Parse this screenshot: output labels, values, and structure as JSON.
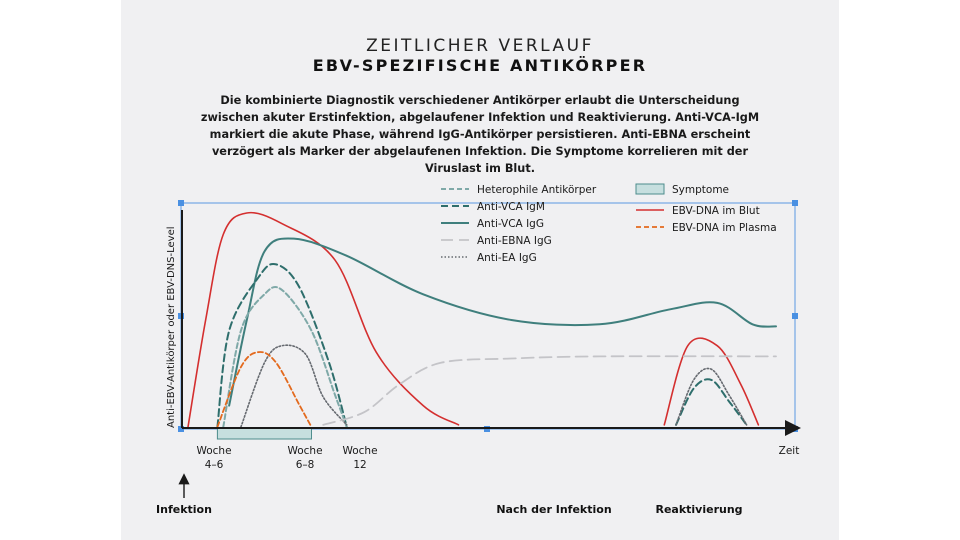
{
  "header": {
    "title_line1": "ZEITLICHER VERLAUF",
    "title_line2": "EBV-SPEZIFISCHE ANTIKÖRPER",
    "description": "Die kombinierte Diagnostik verschiedener Antikörper erlaubt die Unterscheidung zwischen akuter Erstinfektion, abgelaufener Infektion und Reaktivierung. Anti-VCA-IgM markiert die akute Phase, während IgG-Antikörper persistieren. Anti-EBNA erscheint verzögert als Marker der abgelaufenen Infektion. Die Symptome korrelieren mit der Viruslast im Blut."
  },
  "chart_data": {
    "type": "line",
    "ylabel": "Anti-EBV-Antikörper oder EBV-DNS-Level",
    "xlabel": "Zeit",
    "x_ticks": [
      {
        "label": "Woche\n4–6"
      },
      {
        "label": "Woche\n6–8"
      },
      {
        "label": "Woche\n12"
      }
    ],
    "bottom_labels": {
      "infection": "Infektion",
      "after": "Nach der Infektion",
      "reactivation": "Reaktivierung"
    },
    "colors": {
      "heterophile": "#7fa9a8",
      "vca_igm": "#2e6e6c",
      "vca_igg": "#3f7f7d",
      "ebna": "#c4c4c8",
      "ea": "#666a70",
      "symptome_fill": "#c6dfdf",
      "symptome_stroke": "#4d8c8c",
      "dna_blut": "#d42f2f",
      "dna_plasma": "#e36a1e",
      "selection": "#4a90e2"
    },
    "legend": [
      {
        "key": "heterophile",
        "label": "Heterophile Antikörper",
        "style": "dashed-short"
      },
      {
        "key": "vca_igm",
        "label": "Anti-VCA IgM",
        "style": "dashed"
      },
      {
        "key": "vca_igg",
        "label": "Anti-VCA IgG",
        "style": "solid"
      },
      {
        "key": "ebna",
        "label": "Anti-EBNA IgG",
        "style": "dashed-long"
      },
      {
        "key": "ea",
        "label": "Anti-EA IgG",
        "style": "dotted"
      },
      {
        "key": "symptome",
        "label": "Symptome",
        "style": "box"
      },
      {
        "key": "dna_blut",
        "label": "EBV-DNA im Blut",
        "style": "solid"
      },
      {
        "key": "dna_plasma",
        "label": "EBV-DNA im Plasma",
        "style": "dashed"
      }
    ],
    "series": [
      {
        "key": "dna_blut",
        "name": "EBV-DNA im Blut",
        "points": [
          [
            0,
            0
          ],
          [
            0.03,
            0.5
          ],
          [
            0.06,
            0.9
          ],
          [
            0.1,
            1.0
          ],
          [
            0.16,
            0.95
          ],
          [
            0.25,
            0.78
          ],
          [
            0.32,
            0.35
          ],
          [
            0.4,
            0.1
          ],
          [
            0.46,
            0.01
          ],
          [
            0.81,
            0.01
          ],
          [
            0.85,
            0.38
          ],
          [
            0.9,
            0.38
          ],
          [
            0.94,
            0.2
          ],
          [
            0.97,
            0.01
          ]
        ]
      },
      {
        "key": "vca_igg",
        "name": "Anti-VCA IgG",
        "points": [
          [
            0.07,
            0.1
          ],
          [
            0.1,
            0.5
          ],
          [
            0.13,
            0.82
          ],
          [
            0.18,
            0.88
          ],
          [
            0.27,
            0.8
          ],
          [
            0.4,
            0.62
          ],
          [
            0.55,
            0.5
          ],
          [
            0.7,
            0.48
          ],
          [
            0.82,
            0.55
          ],
          [
            0.9,
            0.58
          ],
          [
            0.96,
            0.48
          ],
          [
            1.0,
            0.47
          ]
        ]
      },
      {
        "key": "vca_igm",
        "name": "Anti-VCA IgM",
        "points": [
          [
            0.05,
            0
          ],
          [
            0.07,
            0.45
          ],
          [
            0.12,
            0.7
          ],
          [
            0.15,
            0.76
          ],
          [
            0.19,
            0.65
          ],
          [
            0.24,
            0.3
          ],
          [
            0.27,
            0
          ],
          [
            0.83,
            0.01
          ],
          [
            0.86,
            0.18
          ],
          [
            0.89,
            0.22
          ],
          [
            0.92,
            0.12
          ],
          [
            0.95,
            0.01
          ]
        ]
      },
      {
        "key": "heterophile",
        "name": "Heterophile Antikörper",
        "points": [
          [
            0.06,
            0
          ],
          [
            0.09,
            0.45
          ],
          [
            0.13,
            0.62
          ],
          [
            0.16,
            0.64
          ],
          [
            0.21,
            0.45
          ],
          [
            0.25,
            0.15
          ],
          [
            0.27,
            0
          ]
        ]
      },
      {
        "key": "ea",
        "name": "Anti-EA IgG",
        "points": [
          [
            0.09,
            0
          ],
          [
            0.13,
            0.3
          ],
          [
            0.16,
            0.38
          ],
          [
            0.2,
            0.34
          ],
          [
            0.23,
            0.14
          ],
          [
            0.27,
            0.01
          ],
          [
            0.83,
            0.01
          ],
          [
            0.86,
            0.22
          ],
          [
            0.89,
            0.27
          ],
          [
            0.92,
            0.15
          ],
          [
            0.95,
            0.01
          ]
        ]
      },
      {
        "key": "dna_plasma",
        "name": "EBV-DNA im Plasma",
        "points": [
          [
            0.05,
            0
          ],
          [
            0.09,
            0.28
          ],
          [
            0.12,
            0.35
          ],
          [
            0.15,
            0.3
          ],
          [
            0.19,
            0.1
          ],
          [
            0.21,
            0
          ]
        ]
      },
      {
        "key": "ebna",
        "name": "Anti-EBNA IgG",
        "points": [
          [
            0.23,
            0.01
          ],
          [
            0.3,
            0.07
          ],
          [
            0.36,
            0.2
          ],
          [
            0.43,
            0.3
          ],
          [
            0.55,
            0.32
          ],
          [
            0.7,
            0.33
          ],
          [
            1.0,
            0.33
          ]
        ]
      }
    ],
    "symptome_band": {
      "start": 0.05,
      "end": 0.21
    },
    "grid": false
  }
}
